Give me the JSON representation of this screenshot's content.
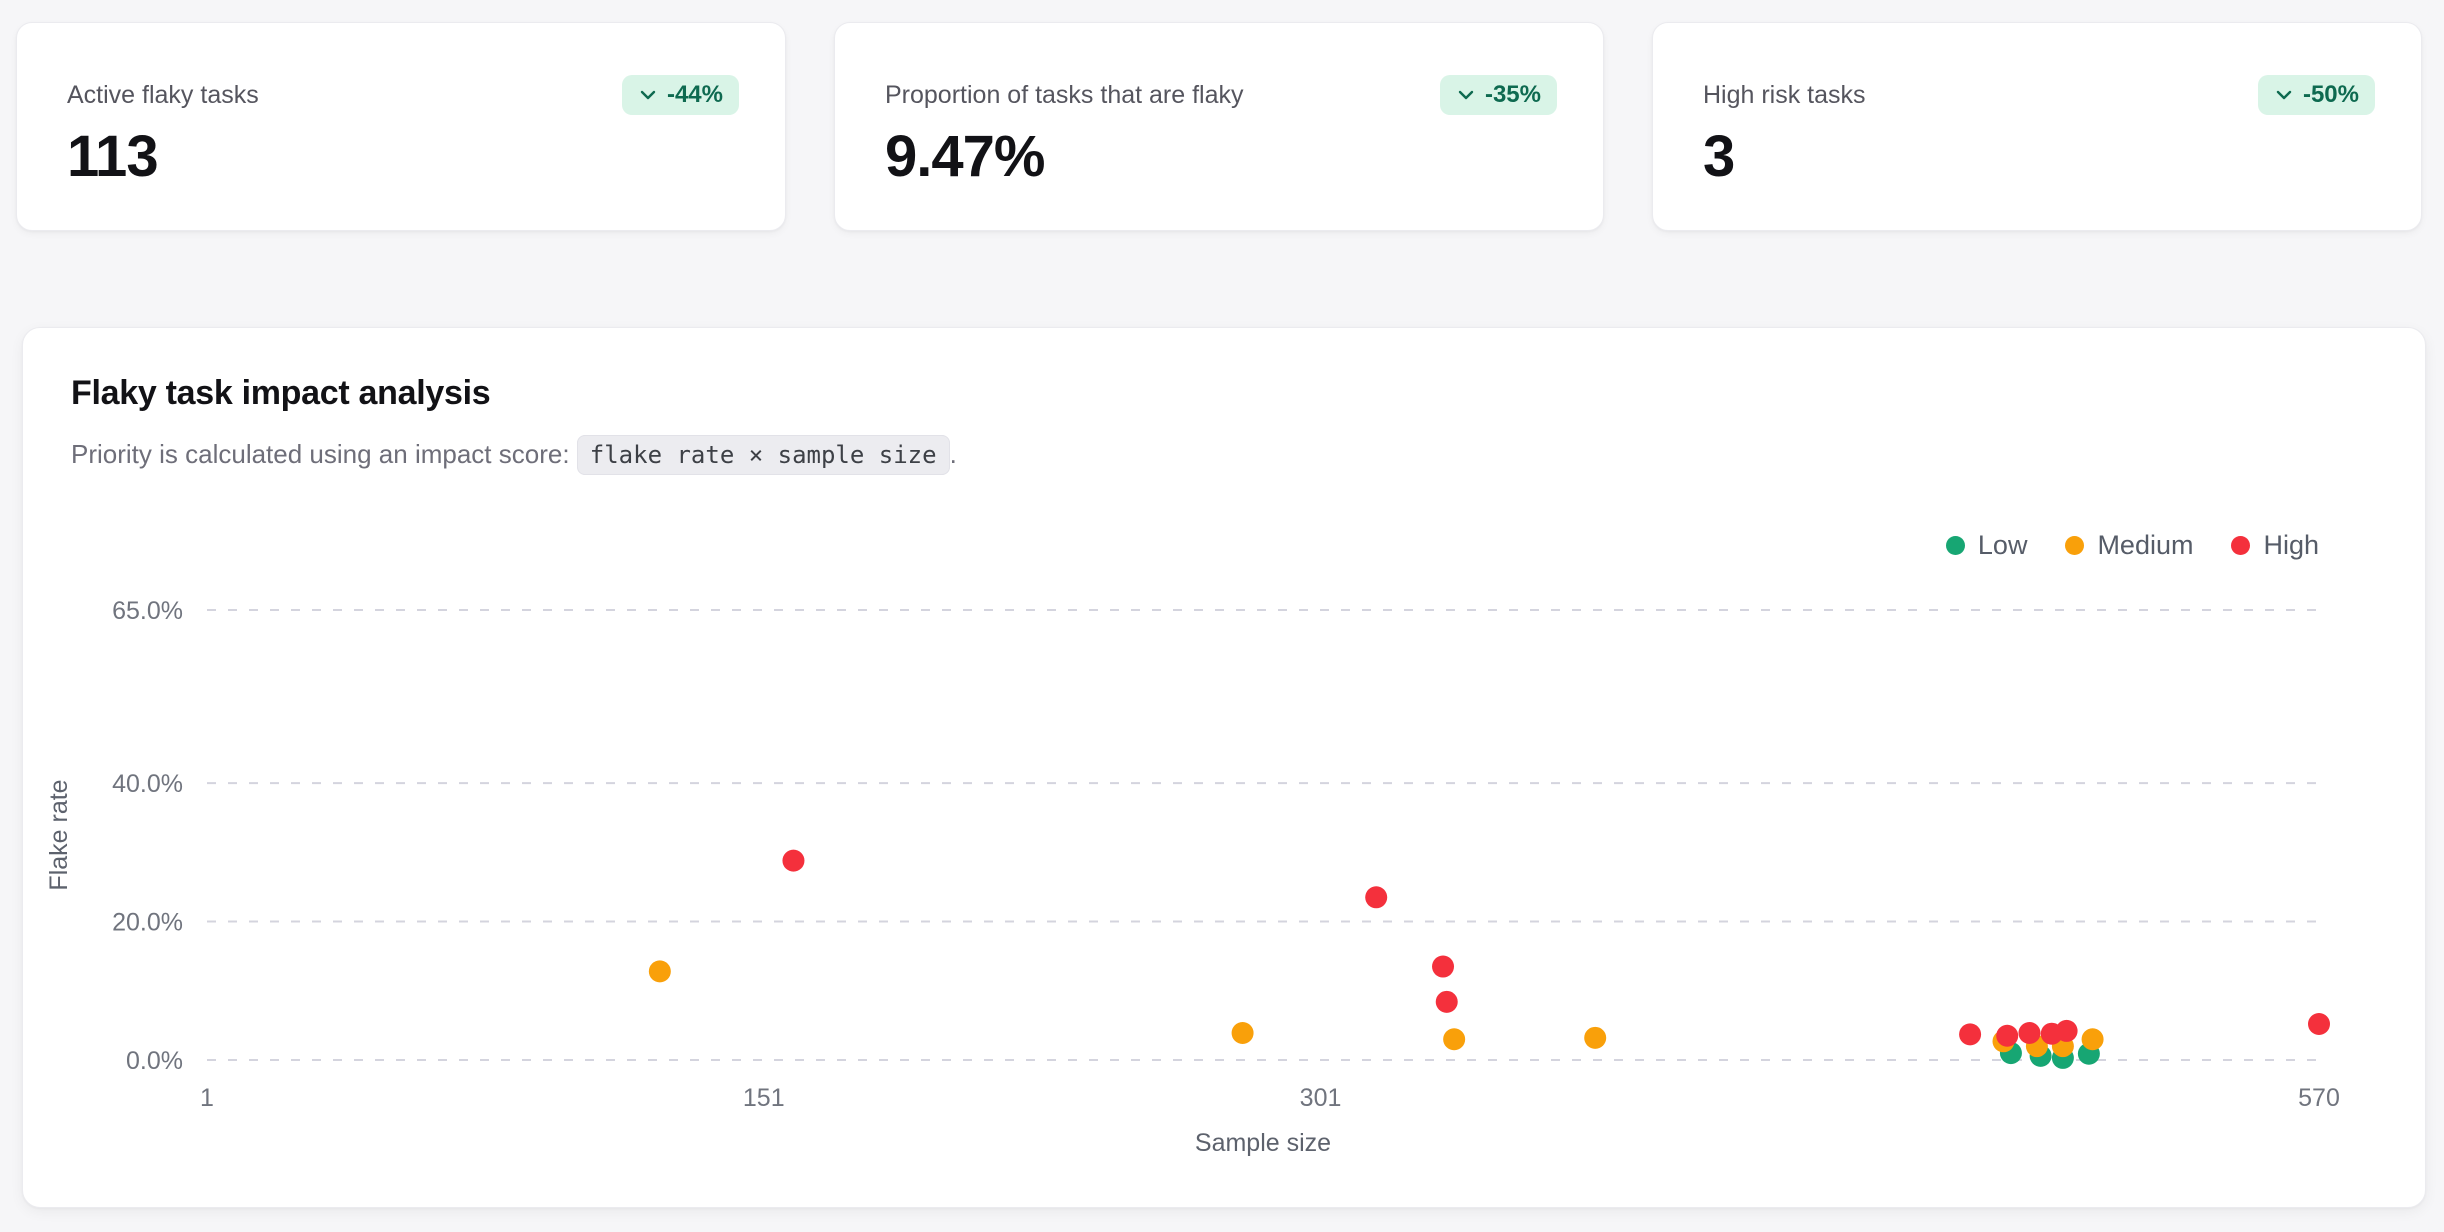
{
  "stat_cards": [
    {
      "label": "Active flaky tasks",
      "value": "113",
      "delta": "-44%",
      "delta_icon": "chevron-down-icon"
    },
    {
      "label": "Proportion of tasks that are flaky",
      "value": "9.47%",
      "delta": "-35%",
      "delta_icon": "chevron-down-icon"
    },
    {
      "label": "High risk tasks",
      "value": "3",
      "delta": "-50%",
      "delta_icon": "chevron-down-icon"
    }
  ],
  "chart_panel": {
    "title": "Flaky task impact analysis",
    "subtitle_prefix": "Priority is calculated using an impact score: ",
    "subtitle_code": "flake rate × sample size",
    "subtitle_suffix": "."
  },
  "chart_data": {
    "type": "scatter",
    "title": "Flaky task impact analysis",
    "xlabel": "Sample size",
    "ylabel": "Flake rate",
    "xlim": [
      1,
      570
    ],
    "ylim": [
      0,
      65
    ],
    "x_ticks": [
      1,
      151,
      301,
      570
    ],
    "y_tick_values": [
      0,
      20,
      40,
      65
    ],
    "y_tick_labels": [
      "0.0%",
      "20.0%",
      "40.0%",
      "65.0%"
    ],
    "grid": "horizontal-dashed",
    "legend_position": "top-right",
    "series": [
      {
        "name": "Low",
        "color": "#17a673",
        "points": [
          [
            487,
            1.0
          ],
          [
            495,
            0.6
          ],
          [
            501,
            0.3
          ],
          [
            508,
            0.9
          ]
        ]
      },
      {
        "name": "Medium",
        "color": "#f9a00a",
        "points": [
          [
            123,
            12.8
          ],
          [
            280,
            3.9
          ],
          [
            337,
            3.0
          ],
          [
            375,
            3.2
          ],
          [
            485,
            2.7
          ],
          [
            494,
            2.0
          ],
          [
            501,
            2.0
          ],
          [
            509,
            3.0
          ]
        ]
      },
      {
        "name": "High",
        "color": "#f4303c",
        "points": [
          [
            159,
            28.8
          ],
          [
            316,
            23.5
          ],
          [
            334,
            13.5
          ],
          [
            335,
            8.4
          ],
          [
            476,
            3.7
          ],
          [
            486,
            3.5
          ],
          [
            492,
            3.9
          ],
          [
            498,
            3.8
          ],
          [
            502,
            4.2
          ],
          [
            570,
            5.2
          ]
        ]
      }
    ]
  },
  "colors": {
    "page_bg": "#f6f6f8",
    "card_bg": "#ffffff",
    "badge_bg": "#d9f4e7",
    "badge_text": "#0e6a50",
    "grid_line": "#d4d4de",
    "tick_text": "#70747e",
    "axis_title_text": "#5d626d",
    "low": "#17a673",
    "medium": "#f9a00a",
    "high": "#f4303c"
  }
}
